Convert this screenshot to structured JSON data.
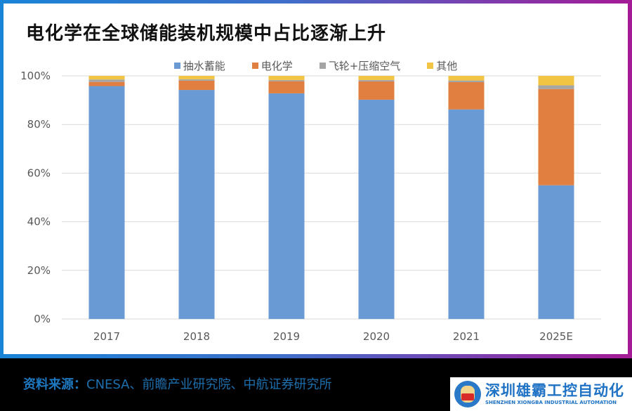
{
  "title": "电化学在全球储能装机规模中占比逐渐上升",
  "source": {
    "label": "资料来源：",
    "text": "CNESA、前瞻产业研究院、中航证券研究所"
  },
  "logo": {
    "name_cn": "深圳雄霸工控自动化",
    "name_en": "SHENZHEN XIONGBA INDUSTRIAL AUTOMATION"
  },
  "chart_data": {
    "type": "bar",
    "stacked": true,
    "title": "电化学在全球储能装机规模中占比逐渐上升",
    "xlabel": "",
    "ylabel": "",
    "categories": [
      "2017",
      "2018",
      "2019",
      "2020",
      "2021",
      "2025E"
    ],
    "ylim": [
      0,
      100
    ],
    "yticks": [
      0,
      20,
      40,
      60,
      80,
      100
    ],
    "ytick_labels": [
      "0%",
      "20%",
      "40%",
      "60%",
      "80%",
      "100%"
    ],
    "grid": true,
    "legend_position": "top-center",
    "series": [
      {
        "name": "抽水蓄能",
        "color": "#6a9ad3",
        "values": [
          95.8,
          94.2,
          92.8,
          90.2,
          86.2,
          55.0
        ]
      },
      {
        "name": "电化学",
        "color": "#e07f3f",
        "values": [
          1.7,
          3.8,
          5.0,
          7.5,
          11.2,
          39.6
        ]
      },
      {
        "name": "飞轮+压缩空气",
        "color": "#a5a5a5",
        "values": [
          1.0,
          0.6,
          0.5,
          0.6,
          0.7,
          1.5
        ]
      },
      {
        "name": "其他",
        "color": "#f2c443",
        "values": [
          1.5,
          1.4,
          1.7,
          1.7,
          1.9,
          3.9
        ]
      }
    ]
  }
}
